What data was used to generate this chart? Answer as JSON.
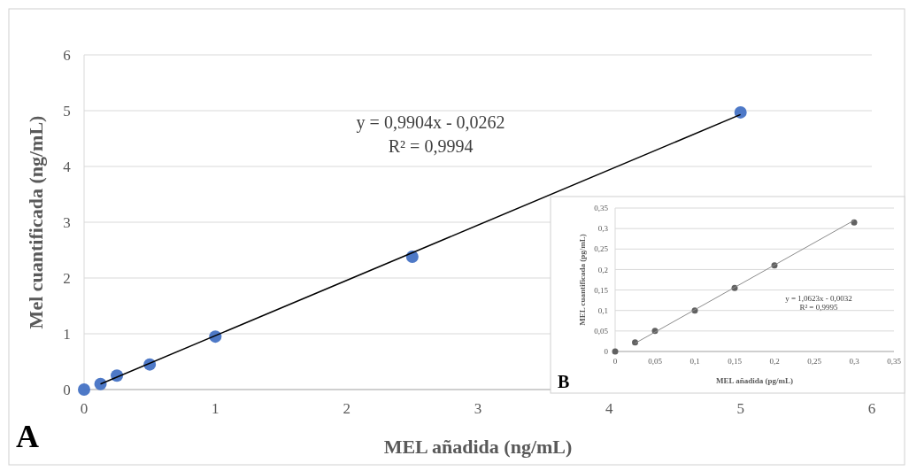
{
  "chart_data": [
    {
      "type": "scatter",
      "xlabel": "MEL añadida (ng/mL)",
      "ylabel": "Mel cuantificada (ng/mL)",
      "xlim": [
        0,
        6
      ],
      "ylim": [
        0,
        6
      ],
      "xticks": [
        0,
        1,
        2,
        3,
        4,
        5,
        6
      ],
      "yticks": [
        0,
        1,
        2,
        3,
        4,
        5,
        6
      ],
      "grid": "y",
      "annotations": [
        "y = 0,9904x - 0,0262",
        "R² = 0,9994",
        "A"
      ],
      "series": [
        {
          "marker": "circle",
          "color": "#4472c4",
          "x": [
            0,
            0.125,
            0.25,
            0.5,
            1,
            2.5,
            5
          ],
          "values": [
            0,
            0.1,
            0.25,
            0.45,
            0.95,
            2.38,
            4.97
          ]
        },
        {
          "type": "line",
          "color": "#000000",
          "x": [
            0.125,
            5
          ],
          "values": [
            0.1,
            4.93
          ]
        }
      ]
    },
    {
      "type": "scatter",
      "xlabel": "MEL añadida (pg/mL)",
      "ylabel": "MEL cuantificada (pg/mL)",
      "xlim": [
        0,
        0.35
      ],
      "ylim": [
        0,
        0.35
      ],
      "xticks": [
        {
          "value": 0,
          "label": "0"
        },
        {
          "value": 0.05,
          "label": "0,05"
        },
        {
          "value": 0.1,
          "label": "0,1"
        },
        {
          "value": 0.15,
          "label": "0,15"
        },
        {
          "value": 0.2,
          "label": "0,2"
        },
        {
          "value": 0.25,
          "label": "0,25"
        },
        {
          "value": 0.3,
          "label": "0,3"
        },
        {
          "value": 0.35,
          "label": "0,35"
        }
      ],
      "yticks": [
        {
          "value": 0,
          "label": "0"
        },
        {
          "value": 0.05,
          "label": "0,05"
        },
        {
          "value": 0.1,
          "label": "0,1"
        },
        {
          "value": 0.15,
          "label": "0,15"
        },
        {
          "value": 0.2,
          "label": "0,2"
        },
        {
          "value": 0.25,
          "label": "0,25"
        },
        {
          "value": 0.3,
          "label": "0,3"
        },
        {
          "value": 0.35,
          "label": "0,35"
        }
      ],
      "grid": "y",
      "annotations": [
        "y = 1,0623x - 0,0032",
        "R² = 0,9995",
        "B"
      ],
      "series": [
        {
          "marker": "circle",
          "color": "#595959",
          "x": [
            0,
            0.025,
            0.05,
            0.1,
            0.15,
            0.2,
            0.3
          ],
          "values": [
            0,
            0.022,
            0.05,
            0.1,
            0.155,
            0.21,
            0.315
          ]
        },
        {
          "type": "line",
          "color": "#8c8c8c",
          "x": [
            0.025,
            0.3
          ],
          "values": [
            0.02,
            0.32
          ]
        }
      ]
    }
  ]
}
